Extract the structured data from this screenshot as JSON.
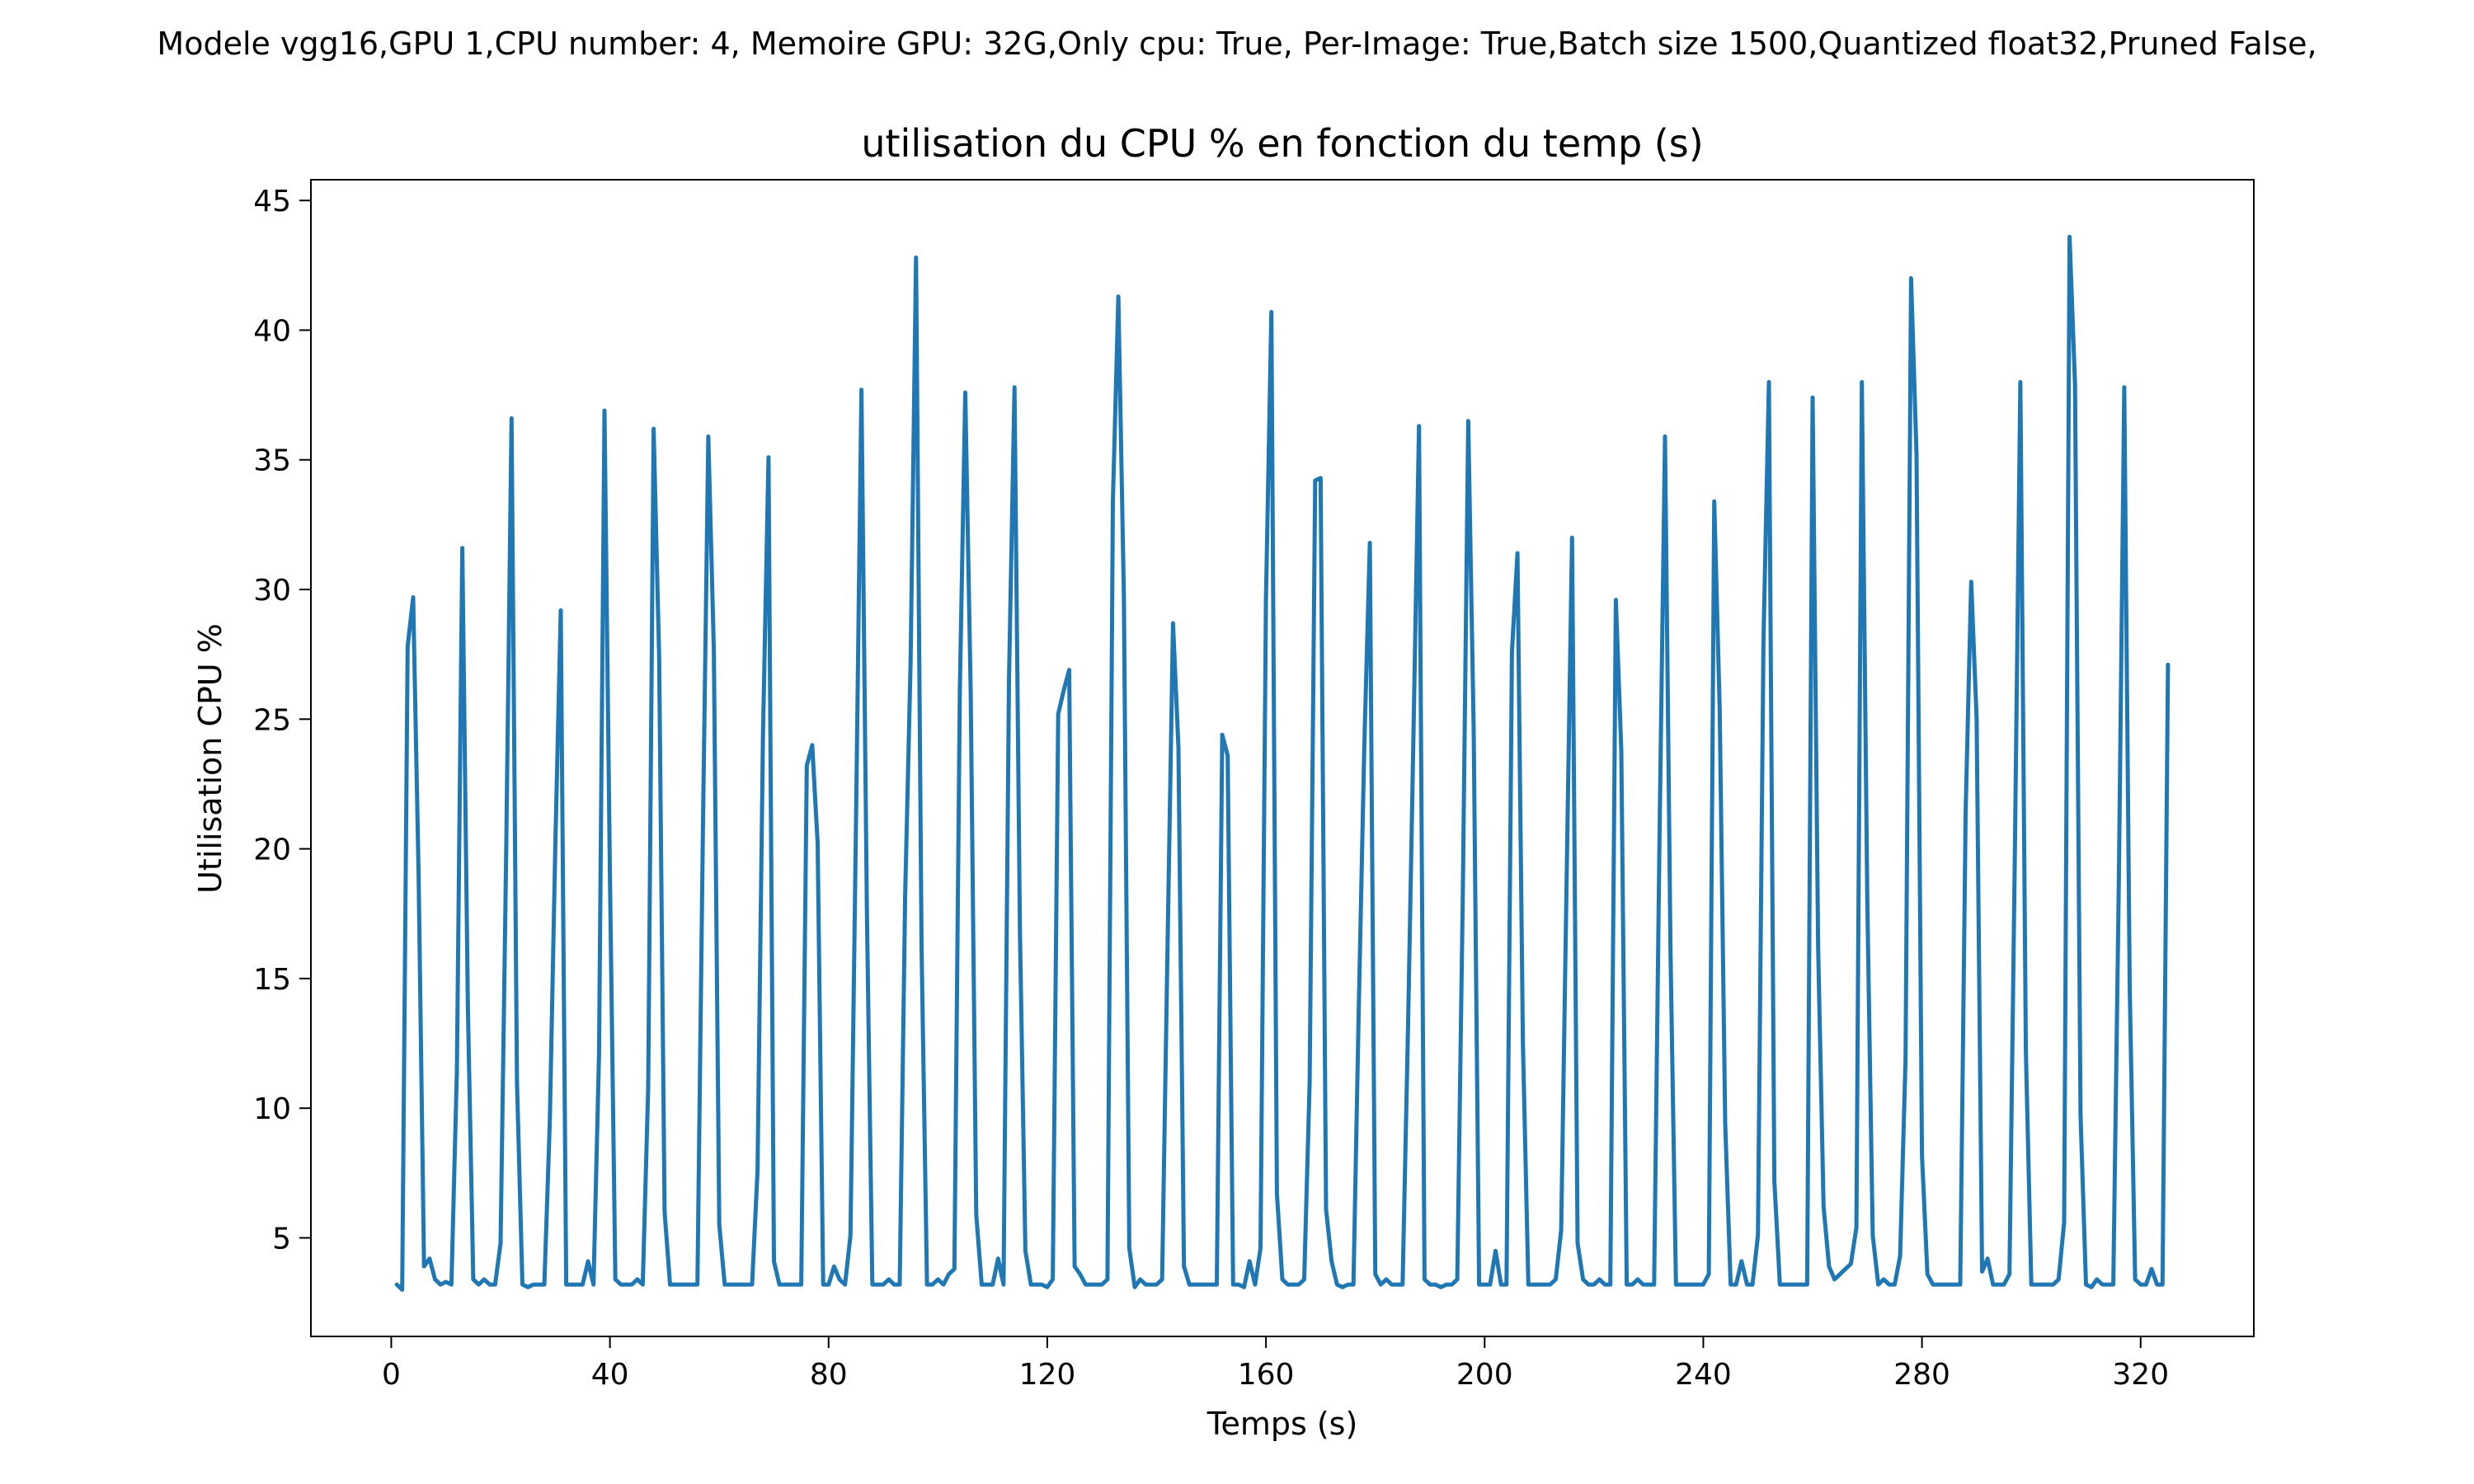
{
  "suptitle": "Modele vgg16,GPU 1,CPU number: 4, Memoire GPU: 32G,Only cpu: True, Per-Image: True,Batch size 1500,Quantized float32,Pruned False,",
  "chart_data": {
    "type": "line",
    "title": "utilisation du CPU % en fonction du temp (s)",
    "xlabel": "Temps (s)",
    "ylabel": "Utilisation CPU %",
    "xlim": [
      -14.7,
      340.7
    ],
    "ylim": [
      1.2,
      45.8
    ],
    "xticks": [
      0,
      40,
      80,
      120,
      160,
      200,
      240,
      280,
      320
    ],
    "yticks": [
      5,
      10,
      15,
      20,
      25,
      30,
      35,
      40,
      45
    ],
    "series": [
      {
        "name": "CPU",
        "color": "#1f77b4",
        "x": [
          1,
          2,
          3,
          4,
          5,
          6,
          7,
          8,
          9,
          10,
          11,
          12,
          13,
          14,
          15,
          16,
          17,
          18,
          19,
          20,
          21,
          22,
          23,
          24,
          25,
          26,
          27,
          28,
          29,
          30,
          31,
          32,
          33,
          34,
          35,
          36,
          37,
          38,
          39,
          40,
          41,
          42,
          43,
          44,
          45,
          46,
          47,
          48,
          49,
          50,
          51,
          52,
          53,
          54,
          55,
          56,
          57,
          58,
          59,
          60,
          61,
          62,
          63,
          64,
          65,
          66,
          67,
          68,
          69,
          70,
          71,
          72,
          73,
          74,
          75,
          76,
          77,
          78,
          79,
          80,
          81,
          82,
          83,
          84,
          85,
          86,
          87,
          88,
          89,
          90,
          91,
          92,
          93,
          94,
          95,
          96,
          97,
          98,
          99,
          100,
          101,
          102,
          103,
          104,
          105,
          106,
          107,
          108,
          109,
          110,
          111,
          112,
          113,
          114,
          115,
          116,
          117,
          118,
          119,
          120,
          121,
          122,
          123,
          124,
          125,
          126,
          127,
          128,
          129,
          130,
          131,
          132,
          133,
          134,
          135,
          136,
          137,
          138,
          139,
          140,
          141,
          142,
          143,
          144,
          145,
          146,
          147,
          148,
          149,
          150,
          151,
          152,
          153,
          154,
          155,
          156,
          157,
          158,
          159,
          160,
          161,
          162,
          163,
          164,
          165,
          166,
          167,
          168,
          169,
          170,
          171,
          172,
          173,
          174,
          175,
          176,
          177,
          178,
          179,
          180,
          181,
          182,
          183,
          184,
          185,
          186,
          187,
          188,
          189,
          190,
          191,
          192,
          193,
          194,
          195,
          196,
          197,
          198,
          199,
          200,
          201,
          202,
          203,
          204,
          205,
          206,
          207,
          208,
          209,
          210,
          211,
          212,
          213,
          214,
          215,
          216,
          217,
          218,
          219,
          220,
          221,
          222,
          223,
          224,
          225,
          226,
          227,
          228,
          229,
          230,
          231,
          232,
          233,
          234,
          235,
          236,
          237,
          238,
          239,
          240,
          241,
          242,
          243,
          244,
          245,
          246,
          247,
          248,
          249,
          250,
          251,
          252,
          253,
          254,
          255,
          256,
          257,
          258,
          259,
          260,
          261,
          262,
          263,
          264,
          265,
          266,
          267,
          268,
          269,
          270,
          271,
          272,
          273,
          274,
          275,
          276,
          277,
          278,
          279,
          280,
          281,
          282,
          283,
          284,
          285,
          286,
          287,
          288,
          289,
          290,
          291,
          292,
          293,
          294,
          295,
          296,
          297,
          298,
          299,
          300,
          301,
          302,
          303,
          304,
          305,
          306,
          307,
          308,
          309,
          310,
          311,
          312,
          313,
          314,
          315,
          316,
          317,
          318,
          319,
          320,
          321,
          322,
          323,
          324,
          325
        ],
        "y": [
          3.2,
          3.0,
          27.8,
          29.7,
          19.0,
          3.9,
          4.2,
          3.4,
          3.2,
          3.3,
          3.2,
          11.4,
          31.6,
          14.0,
          3.4,
          3.2,
          3.4,
          3.2,
          3.2,
          4.8,
          19.6,
          36.6,
          11.0,
          3.2,
          3.1,
          3.2,
          3.2,
          3.2,
          9.5,
          20.0,
          29.2,
          3.2,
          3.2,
          3.2,
          3.2,
          4.1,
          3.2,
          12.1,
          36.9,
          19.0,
          3.4,
          3.2,
          3.2,
          3.2,
          3.4,
          3.2,
          10.8,
          36.2,
          27.4,
          6.0,
          3.2,
          3.2,
          3.2,
          3.2,
          3.2,
          3.2,
          20.6,
          35.9,
          27.7,
          5.5,
          3.2,
          3.2,
          3.2,
          3.2,
          3.2,
          3.2,
          7.6,
          24.4,
          35.1,
          4.1,
          3.2,
          3.2,
          3.2,
          3.2,
          3.2,
          23.2,
          24.0,
          20.2,
          3.2,
          3.2,
          3.9,
          3.4,
          3.2,
          5.1,
          20.8,
          37.7,
          17.6,
          3.2,
          3.2,
          3.2,
          3.4,
          3.2,
          3.2,
          18.2,
          27.2,
          42.8,
          16.2,
          3.2,
          3.2,
          3.4,
          3.2,
          3.6,
          3.8,
          26.1,
          37.6,
          26.0,
          5.9,
          3.2,
          3.2,
          3.2,
          4.2,
          3.2,
          26.5,
          37.8,
          16.8,
          4.5,
          3.2,
          3.2,
          3.2,
          3.1,
          3.4,
          25.2,
          26.1,
          26.9,
          3.9,
          3.6,
          3.2,
          3.2,
          3.2,
          3.2,
          3.4,
          33.4,
          41.3,
          29.8,
          4.6,
          3.1,
          3.4,
          3.2,
          3.2,
          3.2,
          3.4,
          16.3,
          28.7,
          23.9,
          3.9,
          3.2,
          3.2,
          3.2,
          3.2,
          3.2,
          3.2,
          24.4,
          23.6,
          3.2,
          3.2,
          3.1,
          4.1,
          3.2,
          4.6,
          29.6,
          40.7,
          6.7,
          3.4,
          3.2,
          3.2,
          3.2,
          3.4,
          11.0,
          34.2,
          34.3,
          6.1,
          4.1,
          3.2,
          3.1,
          3.2,
          3.2,
          14.1,
          24.0,
          31.8,
          3.6,
          3.2,
          3.4,
          3.2,
          3.2,
          3.2,
          13.3,
          24.6,
          36.3,
          3.4,
          3.2,
          3.2,
          3.1,
          3.2,
          3.2,
          3.4,
          18.2,
          36.5,
          24.6,
          3.2,
          3.2,
          3.2,
          4.5,
          3.2,
          3.2,
          27.6,
          31.4,
          12.5,
          3.2,
          3.2,
          3.2,
          3.2,
          3.2,
          3.4,
          5.3,
          18.8,
          32.0,
          4.8,
          3.4,
          3.2,
          3.2,
          3.4,
          3.2,
          3.2,
          29.6,
          23.8,
          3.2,
          3.2,
          3.4,
          3.2,
          3.2,
          3.2,
          20.6,
          35.9,
          16.0,
          3.2,
          3.2,
          3.2,
          3.2,
          3.2,
          3.2,
          3.6,
          33.4,
          25.4,
          9.4,
          3.2,
          3.2,
          4.1,
          3.2,
          3.2,
          5.1,
          28.0,
          38.0,
          7.2,
          3.2,
          3.2,
          3.2,
          3.2,
          3.2,
          3.2,
          37.4,
          16.2,
          6.2,
          3.9,
          3.4,
          3.6,
          3.8,
          4.0,
          5.4,
          38.0,
          18.0,
          5.1,
          3.2,
          3.4,
          3.2,
          3.2,
          4.3,
          11.9,
          42.0,
          35.2,
          8.2,
          3.6,
          3.2,
          3.2,
          3.2,
          3.2,
          3.2,
          3.2,
          21.5,
          30.3,
          25.0,
          3.7,
          4.2,
          3.2,
          3.2,
          3.2,
          3.6,
          20.0,
          38.0,
          12.2,
          3.2,
          3.2,
          3.2,
          3.2,
          3.2,
          3.4,
          5.6,
          43.6,
          37.9,
          9.7,
          3.2,
          3.1,
          3.4,
          3.2,
          3.2,
          3.2,
          18.7,
          37.8,
          14.7,
          3.4,
          3.2,
          3.2,
          3.8,
          3.2,
          3.2,
          27.1
        ]
      }
    ]
  }
}
